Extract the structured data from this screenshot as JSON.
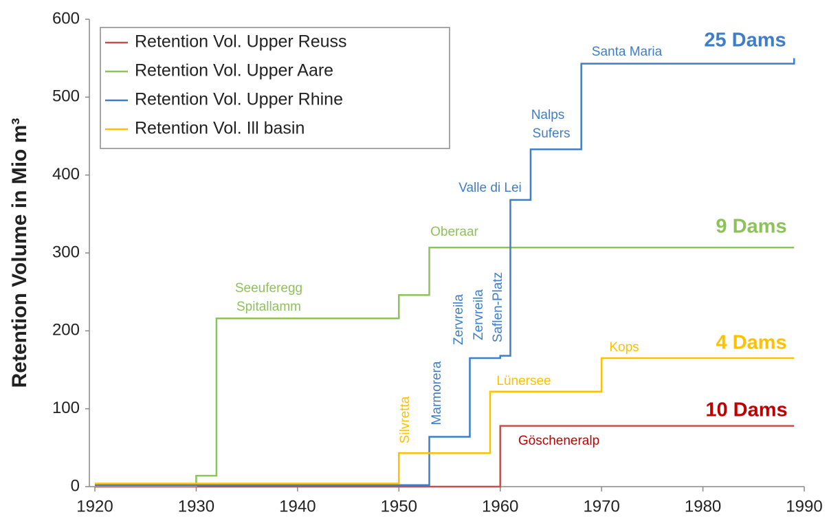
{
  "chart_data": {
    "type": "step",
    "ylabel": "Retention Volume in Mio m³",
    "xlim": [
      1920,
      1990
    ],
    "xticks": [
      1920,
      1930,
      1940,
      1950,
      1960,
      1970,
      1980,
      1990
    ],
    "ylim": [
      0,
      600
    ],
    "yticks": [
      0,
      100,
      200,
      300,
      400,
      500,
      600
    ],
    "grid": false,
    "legend": "upper left",
    "series": [
      {
        "name": "Retention Vol. Upper Reuss",
        "color": "#c0504d",
        "x": [
          1920,
          1960,
          1989
        ],
        "values": [
          0,
          78,
          78
        ]
      },
      {
        "name": "Retention Vol. Upper Aare",
        "color": "#8dc25a",
        "x": [
          1920,
          1930,
          1932,
          1950,
          1953,
          1989
        ],
        "values": [
          1,
          14,
          216,
          246,
          307,
          307
        ]
      },
      {
        "name": "Retention Vol. Upper Rhine",
        "color": "#3e7ec8",
        "x": [
          1920,
          1953,
          1957,
          1960,
          1961,
          1963,
          1968,
          1989
        ],
        "values": [
          2,
          64,
          165,
          168,
          368,
          433,
          543,
          550
        ]
      },
      {
        "name": "Retention Vol. Ill basin",
        "color": "#ffc000",
        "x": [
          1920,
          1950,
          1959,
          1970,
          1989
        ],
        "values": [
          4,
          43,
          122,
          165,
          165
        ]
      }
    ],
    "annotations": [
      {
        "text": "Santa Maria",
        "color": "#3e7ec8"
      },
      {
        "text": "25 Dams",
        "color": "#3e7ec8"
      },
      {
        "text": "Nalps",
        "color": "#3e7ec8"
      },
      {
        "text": "Sufers",
        "color": "#3e7ec8"
      },
      {
        "text": "Valle di Lei",
        "color": "#3e7ec8"
      },
      {
        "text": "Oberaar",
        "color": "#8dc25a"
      },
      {
        "text": "9 Dams",
        "color": "#8dc25a"
      },
      {
        "text": "Seeuferegg",
        "color": "#8dc25a"
      },
      {
        "text": "Spitallamm",
        "color": "#8dc25a"
      },
      {
        "text": "Marmorera",
        "color": "#3e7ec8"
      },
      {
        "text": "Zervreila",
        "color": "#3e7ec8"
      },
      {
        "text": "Zervreila",
        "color": "#3e7ec8"
      },
      {
        "text": "Saflen-Platz",
        "color": "#3e7ec8"
      },
      {
        "text": "Silvretta",
        "color": "#ffc000"
      },
      {
        "text": "Lünersee",
        "color": "#ffc000"
      },
      {
        "text": "Kops",
        "color": "#ffc000"
      },
      {
        "text": "4 Dams",
        "color": "#ffc000"
      },
      {
        "text": "10 Dams",
        "color": "#c00000"
      },
      {
        "text": "Göscheneralp",
        "color": "#c00000"
      }
    ]
  }
}
